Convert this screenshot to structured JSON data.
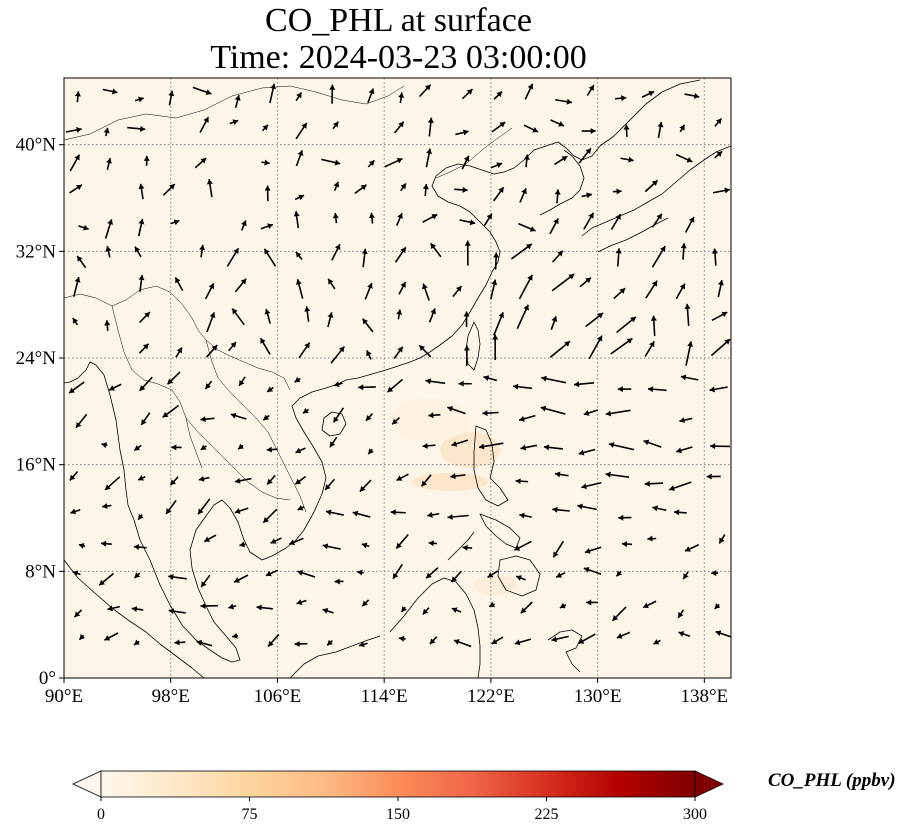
{
  "figure": {
    "title_line1": "CO_PHL at surface",
    "title_line2": "Time: 2024-03-23 03:00:00"
  },
  "map": {
    "lon_range": [
      90,
      140
    ],
    "lat_range": [
      0,
      45
    ],
    "projection": "PlateCarree",
    "background_color": "#fef5e9",
    "gridlines": "dotted gray",
    "lon_ticks": [
      {
        "value": 90,
        "label": "90°E"
      },
      {
        "value": 98,
        "label": "98°E"
      },
      {
        "value": 106,
        "label": "106°E"
      },
      {
        "value": 114,
        "label": "114°E"
      },
      {
        "value": 122,
        "label": "122°E"
      },
      {
        "value": 130,
        "label": "130°E"
      },
      {
        "value": 138,
        "label": "138°E"
      }
    ],
    "lat_ticks": [
      {
        "value": 0,
        "label": "0°"
      },
      {
        "value": 8,
        "label": "8°N"
      },
      {
        "value": 16,
        "label": "16°N"
      },
      {
        "value": 24,
        "label": "24°N"
      },
      {
        "value": 32,
        "label": "32°N"
      },
      {
        "value": 40,
        "label": "40°N"
      }
    ],
    "wind_field": "black quiver arrows (surface wind)",
    "coastlines": "thin black lines"
  },
  "colorbar": {
    "title": "CO_PHL (ppbv)",
    "min": 0,
    "max": 300,
    "colormap": "OrRd",
    "extend": "both",
    "ticks": [
      {
        "value": 0,
        "label": "0"
      },
      {
        "value": 75,
        "label": "75"
      },
      {
        "value": 150,
        "label": "150"
      },
      {
        "value": 225,
        "label": "225"
      },
      {
        "value": 300,
        "label": "300"
      }
    ],
    "stops": [
      "#fff7ec",
      "#fee8c8",
      "#fdd49e",
      "#fdbb84",
      "#fc8d59",
      "#ef6548",
      "#d7301f",
      "#b30000",
      "#7f0000"
    ]
  }
}
